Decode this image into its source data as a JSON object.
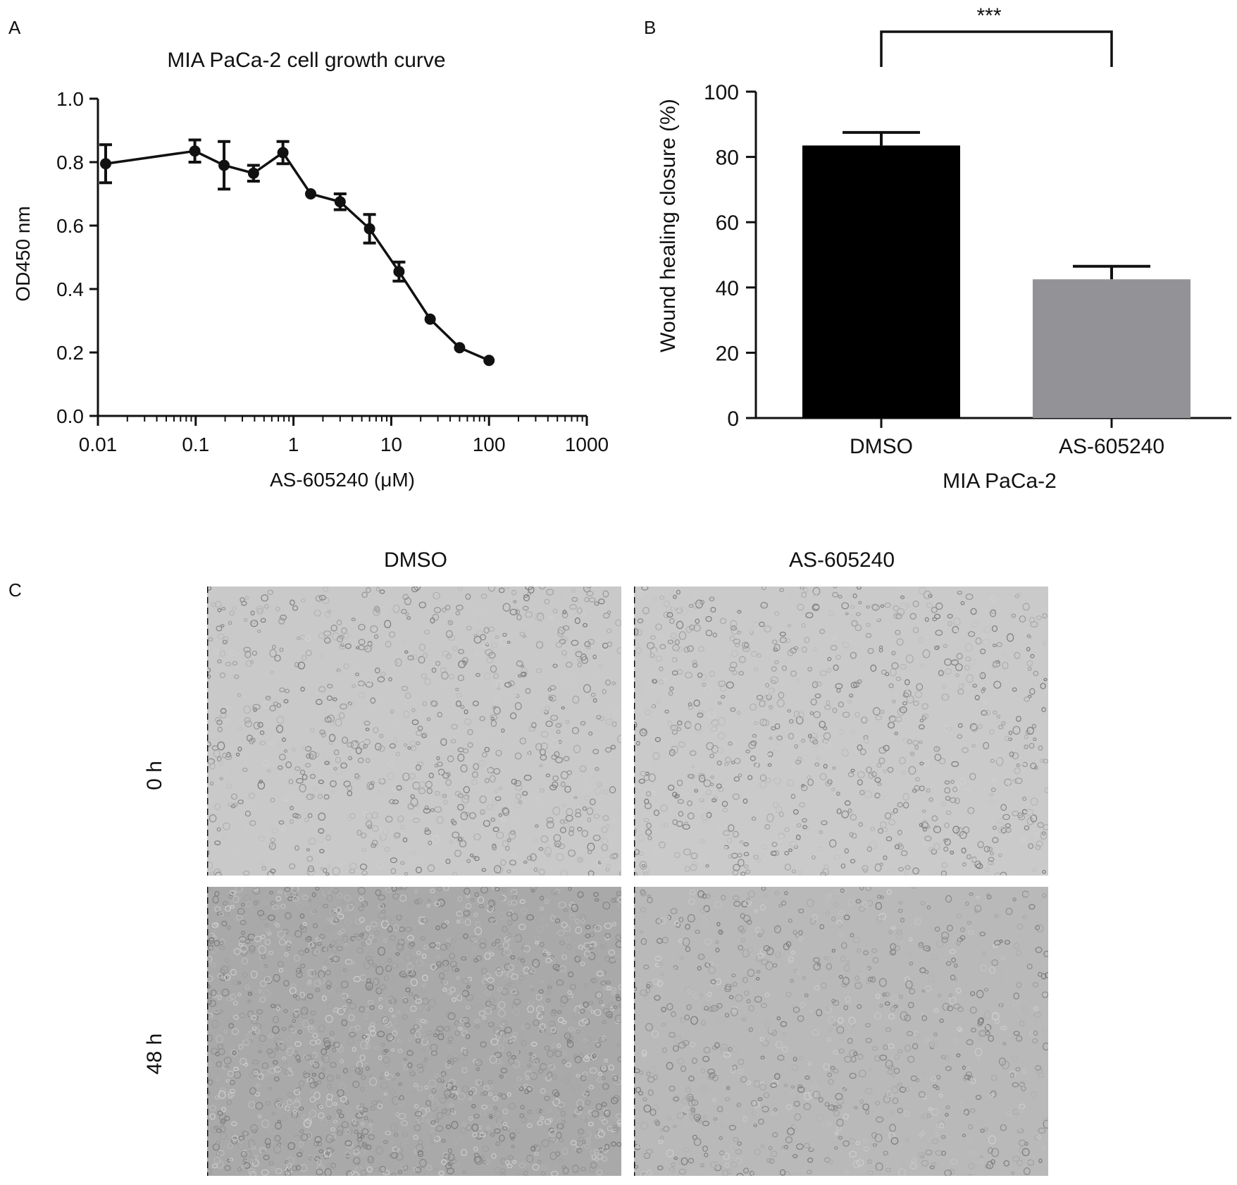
{
  "panels": {
    "a": "A",
    "b": "B",
    "c": "C"
  },
  "chart_data": [
    {
      "type": "line",
      "panel": "A",
      "title": "MIA PaCa-2 cell growth curve",
      "xlabel": "AS-605240 (μM)",
      "ylabel": "OD450 nm",
      "xscale": "log",
      "xlim": [
        0.01,
        1000
      ],
      "ylim": [
        0.0,
        1.0
      ],
      "xticks": [
        0.01,
        0.1,
        1,
        10,
        100,
        1000
      ],
      "xtick_labels": [
        "0.01",
        "0.1",
        "1",
        "10",
        "100",
        "1000"
      ],
      "yticks": [
        0.0,
        0.2,
        0.4,
        0.6,
        0.8,
        1.0
      ],
      "ytick_labels": [
        "0.0",
        "0.2",
        "0.4",
        "0.6",
        "0.8",
        "1.0"
      ],
      "grid": false,
      "series": [
        {
          "x": [
            0.012,
            0.098,
            0.195,
            0.39,
            0.78,
            1.5,
            3.0,
            6.0,
            12.0,
            25.0,
            50.0,
            100.0
          ],
          "y": [
            0.795,
            0.835,
            0.79,
            0.765,
            0.83,
            0.7,
            0.675,
            0.59,
            0.455,
            0.305,
            0.215,
            0.175
          ],
          "err": [
            0.06,
            0.035,
            0.075,
            0.025,
            0.035,
            0.01,
            0.025,
            0.045,
            0.03,
            0.01,
            0.01,
            0.01
          ]
        }
      ]
    },
    {
      "type": "bar",
      "panel": "B",
      "xlabel": "MIA PaCa-2",
      "ylabel": "Wound healing closure (%)",
      "ylim": [
        0,
        100
      ],
      "yticks": [
        0,
        20,
        40,
        60,
        80,
        100
      ],
      "ytick_labels": [
        "0",
        "20",
        "40",
        "60",
        "80",
        "100"
      ],
      "categories": [
        "DMSO",
        "AS-605240"
      ],
      "values": [
        83.5,
        42.5
      ],
      "errors": [
        4.0,
        4.0
      ],
      "colors": [
        "#000000",
        "#929297"
      ],
      "significance": "***",
      "grid": false
    }
  ],
  "micrographs": {
    "columns": [
      "DMSO",
      "AS-605240"
    ],
    "rows": [
      "0 h",
      "48 h"
    ]
  }
}
